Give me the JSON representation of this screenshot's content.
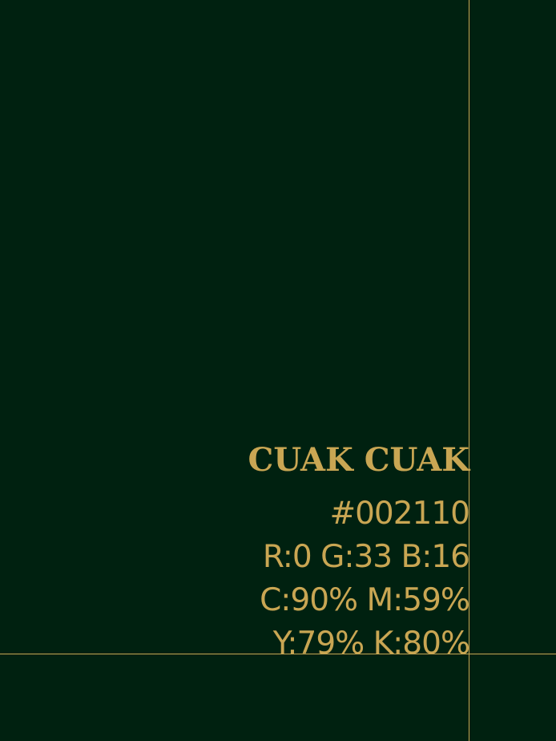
{
  "swatch": {
    "color_hex": "#002110",
    "accent_hex": "#c9a653",
    "name": "CUAK CUAK",
    "hex_label": "#002110",
    "rgb_label": "R:0 G:33 B:16",
    "cmyk_line1": "C:90% M:59%",
    "cmyk_line2": "Y:79% K:80%"
  }
}
